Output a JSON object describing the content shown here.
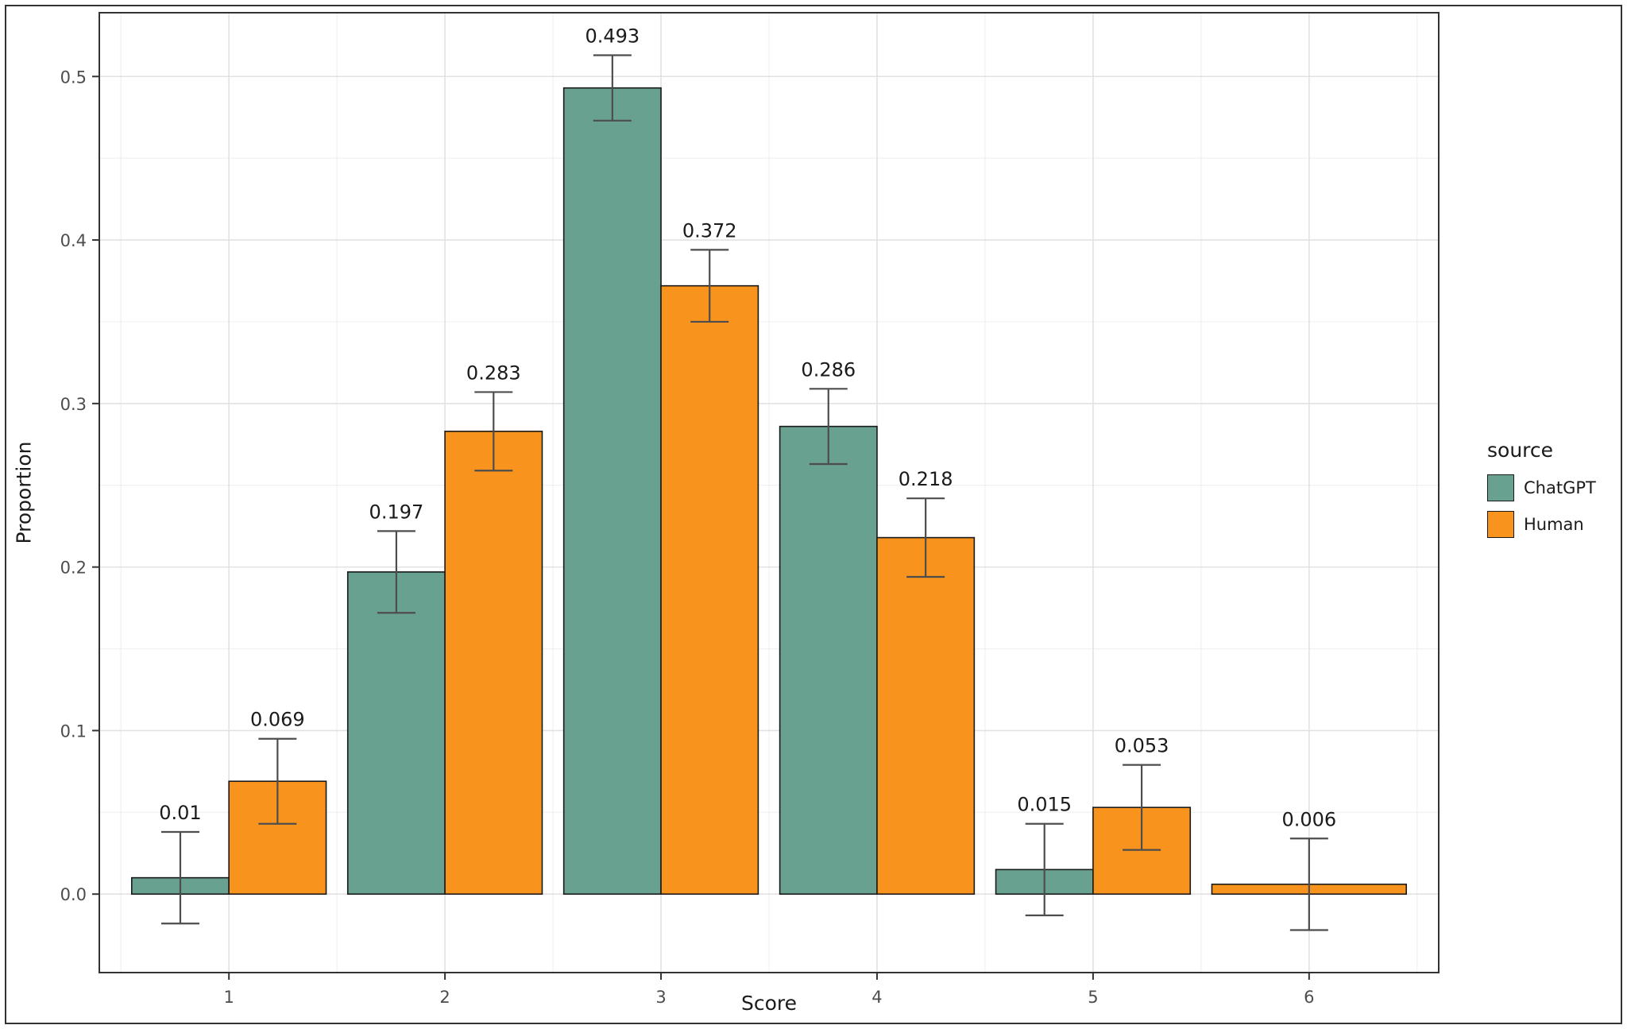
{
  "chart_data": {
    "type": "bar",
    "title": "",
    "xlabel": "Score",
    "ylabel": "Proportion",
    "legend_title": "source",
    "legend_position": "right",
    "grid": true,
    "categories": [
      "1",
      "2",
      "3",
      "4",
      "5",
      "6"
    ],
    "series": [
      {
        "name": "ChatGPT",
        "color": "#69A190",
        "values": [
          0.01,
          0.197,
          0.493,
          0.286,
          0.015,
          null
        ],
        "labels": [
          "0.01",
          "0.197",
          "0.493",
          "0.286",
          "0.015",
          null
        ],
        "error_low": [
          -0.018,
          0.172,
          0.473,
          0.263,
          -0.013,
          null
        ],
        "error_high": [
          0.038,
          0.222,
          0.513,
          0.309,
          0.043,
          null
        ]
      },
      {
        "name": "Human",
        "color": "#F8941E",
        "values": [
          0.069,
          0.283,
          0.372,
          0.218,
          0.053,
          0.006
        ],
        "labels": [
          "0.069",
          "0.283",
          "0.372",
          "0.218",
          "0.053",
          "0.006"
        ],
        "error_low": [
          0.043,
          0.259,
          0.35,
          0.194,
          0.027,
          -0.022
        ],
        "error_high": [
          0.095,
          0.307,
          0.394,
          0.242,
          0.079,
          0.034
        ]
      }
    ],
    "ylim": [
      -0.048,
      0.539
    ],
    "yticks": [
      0.0,
      0.1,
      0.2,
      0.3,
      0.4,
      0.5
    ],
    "ytick_labels": [
      "0.0",
      "0.1",
      "0.2",
      "0.3",
      "0.4",
      "0.5"
    ],
    "minor_step": 0.05
  },
  "colors": {
    "background": "#FFFFFF",
    "grid_major": "#E2E2E2",
    "grid_minor": "#F0F0F0",
    "panel_border": "#333333",
    "bar_stroke": "#1A1A1A",
    "errorbar": "#4D4D4D",
    "tick_text": "#4D4D4D",
    "text": "#1A1A1A"
  }
}
